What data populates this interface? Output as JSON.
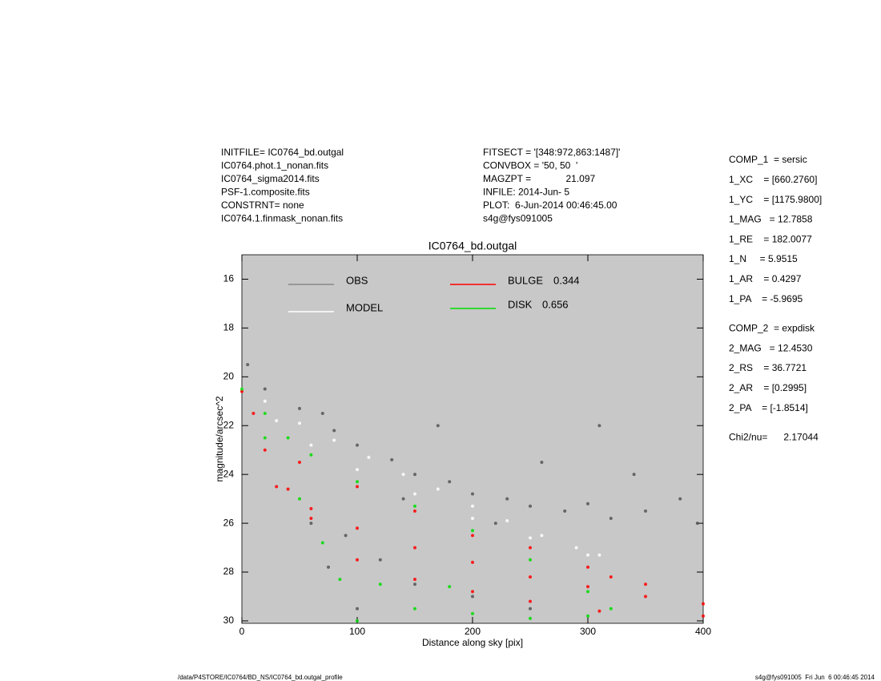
{
  "header": {
    "left": [
      "INITFILE= IC0764_bd.outgal",
      "IC0764.phot.1_nonan.fits",
      "IC0764_sigma2014.fits",
      "PSF-1.composite.fits",
      "CONSTRNT= none",
      "IC0764.1.finmask_nonan.fits"
    ],
    "middle": [
      "FITSECT = '[348:972,863:1487]'",
      "CONVBOX = '50, 50  '",
      "MAGZPT =             21.097",
      "INFILE: 2014-Jun- 5",
      "PLOT:  6-Jun-2014 00:46:45.00",
      "s4g@fys091005"
    ],
    "right": [
      "COMP_1  = sersic",
      "1_XC    = [660.2760]",
      "1_YC    = [1175.9800]",
      "1_MAG   = 12.7858",
      "1_RE    = 182.0077",
      "1_N     = 5.9515",
      "1_AR    = 0.4297",
      "1_PA    = -5.9695",
      "COMP_2  = expdisk",
      "2_MAG   = 12.4530",
      "2_RS    = 36.7721",
      "2_AR    = [0.2995]",
      "2_PA    = [-1.8514]",
      "Chi2/nu=      2.17044"
    ]
  },
  "footer": {
    "left": "/data/P4STORE/IC0764/BD_NS/IC0764_bd.outgal_profile",
    "right": "s4g@fys091005  Fri Jun  6 00:46:45 2014"
  },
  "chart_data": {
    "type": "scatter",
    "title": "IC0764_bd.outgal",
    "x_label": "Distance along sky [pix]",
    "y_label": "magnitude/arcsec^2",
    "xlim": [
      0,
      400
    ],
    "xticks": [
      0,
      100,
      200,
      300,
      400
    ],
    "ylim": [
      15,
      30.1
    ],
    "yticks": [
      16,
      18,
      20,
      22,
      24,
      26,
      28,
      30
    ],
    "y_inverted": true,
    "background": "#c8c8c8",
    "series": [
      {
        "name": "OBS",
        "color": "#555555",
        "legend_color": "#888888",
        "x": [
          5,
          20,
          50,
          70,
          80,
          100,
          130,
          150,
          180,
          200,
          230,
          250,
          280,
          300,
          320,
          350,
          380,
          395,
          120,
          150,
          200,
          250,
          90,
          60,
          310,
          170,
          260,
          340,
          220,
          140,
          100,
          75
        ],
        "values": [
          19.5,
          20.5,
          21.3,
          21.5,
          22.2,
          22.8,
          23.4,
          24,
          24.3,
          24.8,
          25,
          25.3,
          25.5,
          25.2,
          25.8,
          25.5,
          25,
          26,
          27.5,
          28.5,
          29,
          29.5,
          26.5,
          26,
          22,
          22,
          23.5,
          24,
          26,
          25,
          29.5,
          27.8
        ]
      },
      {
        "name": "MODEL",
        "color": "#ffffff",
        "legend_color": "#ffffff",
        "x": [
          0,
          20,
          50,
          80,
          110,
          140,
          170,
          200,
          230,
          260,
          290,
          310,
          30,
          60,
          100,
          150,
          200,
          250,
          300
        ],
        "values": [
          20.5,
          21,
          21.9,
          22.6,
          23.3,
          24,
          24.6,
          25.3,
          25.9,
          26.5,
          27,
          27.3,
          21.8,
          22.8,
          23.8,
          24.8,
          25.8,
          26.6,
          27.3
        ]
      },
      {
        "name": "BULGE",
        "fraction": 0.344,
        "color": "#ff0000",
        "legend_color": "#ff0000",
        "x": [
          0,
          20,
          40,
          60,
          100,
          150,
          200,
          250,
          300,
          350,
          400,
          10,
          30,
          60,
          100,
          150,
          200,
          250,
          310,
          400,
          50,
          100,
          150,
          200,
          250,
          300,
          320,
          350
        ],
        "values": [
          20.6,
          23,
          24.6,
          25.4,
          26.2,
          27,
          27.6,
          28.2,
          28.6,
          29,
          29.3,
          21.5,
          24.5,
          25.8,
          27.5,
          28.3,
          28.8,
          29.2,
          29.6,
          29.8,
          23.5,
          24.5,
          25.5,
          26.5,
          27,
          27.8,
          28.2,
          28.5
        ]
      },
      {
        "name": "DISK",
        "fraction": 0.656,
        "color": "#00dd00",
        "legend_color": "#00dd00",
        "x": [
          0,
          20,
          40,
          60,
          100,
          150,
          200,
          250,
          300,
          320,
          20,
          50,
          70,
          85,
          100,
          150,
          200,
          250,
          300,
          120,
          180
        ],
        "values": [
          20.5,
          21.5,
          22.5,
          23.2,
          24.3,
          25.3,
          26.3,
          27.5,
          28.8,
          29.5,
          22.5,
          25,
          26.8,
          28.3,
          30,
          29.5,
          29.7,
          29.9,
          29.8,
          28.5,
          28.6
        ]
      }
    ]
  }
}
